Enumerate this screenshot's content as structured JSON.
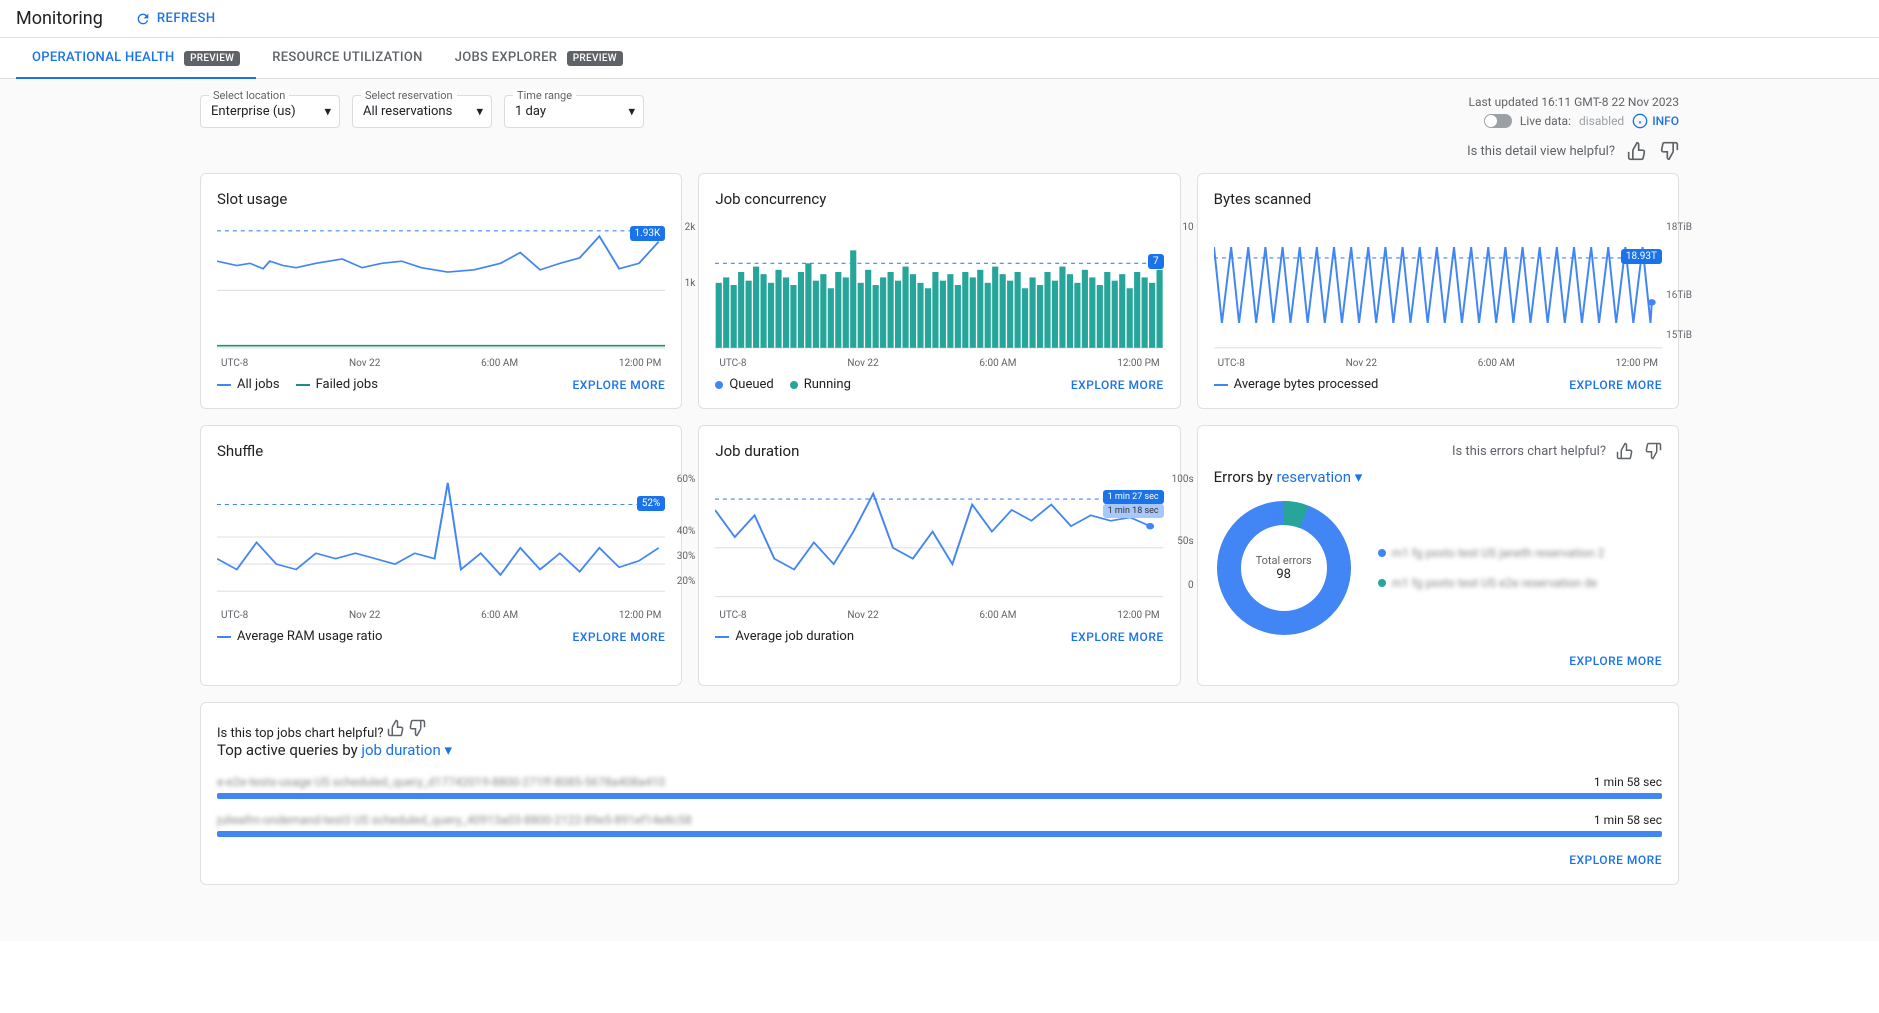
{
  "header": {
    "title": "Monitoring",
    "refresh": "REFRESH"
  },
  "tabs": {
    "operational": "OPERATIONAL HEALTH",
    "resource": "RESOURCE UTILIZATION",
    "jobs": "JOBS EXPLORER",
    "preview_badge": "PREVIEW"
  },
  "filters": {
    "location": {
      "label": "Select location",
      "value": "Enterprise (us)"
    },
    "reservation": {
      "label": "Select reservation",
      "value": "All reservations"
    },
    "timerange": {
      "label": "Time range",
      "value": "1 day"
    }
  },
  "status": {
    "last_updated": "Last updated 16:11 GMT-8 22 Nov 2023",
    "live_label": "Live data:",
    "live_state": "disabled",
    "info": "INFO"
  },
  "helpful": {
    "detail": "Is this detail view helpful?",
    "errors": "Is this errors chart helpful?",
    "topjobs": "Is this top jobs chart helpful?"
  },
  "charts": {
    "slot": {
      "title": "Slot usage",
      "y_top": "2k",
      "y_mid": "1k",
      "badge": "1.93K",
      "xaxis": [
        "UTC-8",
        "Nov 22",
        "6:00 AM",
        "12:00 PM"
      ],
      "line_color": "#4285f4",
      "legend": [
        {
          "label": "All jobs",
          "color": "#4285f4",
          "shape": "line"
        },
        {
          "label": "Failed jobs",
          "color": "#1e8e7e",
          "shape": "line"
        }
      ],
      "points": [
        0,
        38,
        15,
        42,
        25,
        40,
        35,
        45,
        40,
        38,
        50,
        42,
        60,
        44,
        75,
        40,
        95,
        36,
        110,
        44,
        125,
        40,
        140,
        38,
        155,
        44,
        175,
        48,
        195,
        46,
        215,
        40,
        230,
        30,
        245,
        46,
        260,
        40,
        275,
        35,
        290,
        15,
        305,
        45,
        320,
        40,
        335,
        20
      ]
    },
    "concurrency": {
      "title": "Job concurrency",
      "y_top": "10",
      "badge": "7",
      "xaxis": [
        "UTC-8",
        "Nov 22",
        "6:00 AM",
        "12:00 PM"
      ],
      "bar_color": "#26a69a",
      "accent_color": "#4285f4",
      "legend": [
        {
          "label": "Queued",
          "color": "#4285f4",
          "shape": "dot"
        },
        {
          "label": "Running",
          "color": "#26a69a",
          "shape": "dot"
        }
      ],
      "bars": [
        60,
        65,
        58,
        70,
        62,
        75,
        68,
        60,
        72,
        65,
        58,
        70,
        78,
        62,
        68,
        55,
        70,
        65,
        90,
        60,
        72,
        58,
        65,
        70,
        62,
        75,
        68,
        60,
        55,
        70,
        62,
        68,
        58,
        70,
        65,
        72,
        60,
        75,
        68,
        62,
        70,
        55,
        65,
        58,
        70,
        62,
        75,
        68,
        60,
        72,
        65,
        58,
        70,
        62,
        68,
        55,
        70,
        65,
        60,
        72
      ]
    },
    "bytes": {
      "title": "Bytes scanned",
      "y_top": "18TiB",
      "y_mid": "16TiB",
      "y_bot": "15TiB",
      "badge": "18.93T",
      "xaxis": [
        "UTC-8",
        "Nov 22",
        "6:00 AM",
        "12:00 PM"
      ],
      "line_color": "#4285f4",
      "legend": [
        {
          "label": "Average bytes processed",
          "color": "#4285f4",
          "shape": "line"
        }
      ]
    },
    "shuffle": {
      "title": "Shuffle",
      "y_labels": [
        "60%",
        "40%",
        "30%",
        "20%"
      ],
      "badge": "52%",
      "xaxis": [
        "UTC-8",
        "Nov 22",
        "6:00 AM",
        "12:00 PM"
      ],
      "line_color": "#4285f4",
      "legend": [
        {
          "label": "Average RAM usage ratio",
          "color": "#4285f4",
          "shape": "line"
        }
      ]
    },
    "duration": {
      "title": "Job duration",
      "y_labels": [
        "100s",
        "50s",
        "0"
      ],
      "badge": "1 min 27 sec",
      "badge2": "1 min 18 sec",
      "xaxis": [
        "UTC-8",
        "Nov 22",
        "6:00 AM",
        "12:00 PM"
      ],
      "line_color": "#4285f4",
      "legend": [
        {
          "label": "Average job duration",
          "color": "#4285f4",
          "shape": "line"
        }
      ]
    },
    "errors": {
      "title_prefix": "Errors by ",
      "dropdown": "reservation",
      "total_label": "Total errors",
      "total": "98",
      "colors": [
        "#4285f4",
        "#26a69a"
      ],
      "arc_split": 0.94,
      "legend_blur": [
        "m1 fg pxxto test US janeth reservation 2",
        "m1 fg pxxto test US e2e reservation de"
      ]
    }
  },
  "topqueries": {
    "title_prefix": "Top active queries by ",
    "dropdown": "job duration",
    "items": [
      {
        "label_blur": "e-e2e-tests-usage US scheduled_query_d17742019-8800-271ff-8085-5678a408a410",
        "duration": "1 min 58 sec",
        "width": 100
      },
      {
        "label_blur": "julieafm-ondemand-test3 US scheduled_query_40913a03-8800-2122-89e5-891ef14e8c58",
        "duration": "1 min 58 sec",
        "width": 100
      }
    ]
  },
  "explore": "EXPLORE MORE"
}
